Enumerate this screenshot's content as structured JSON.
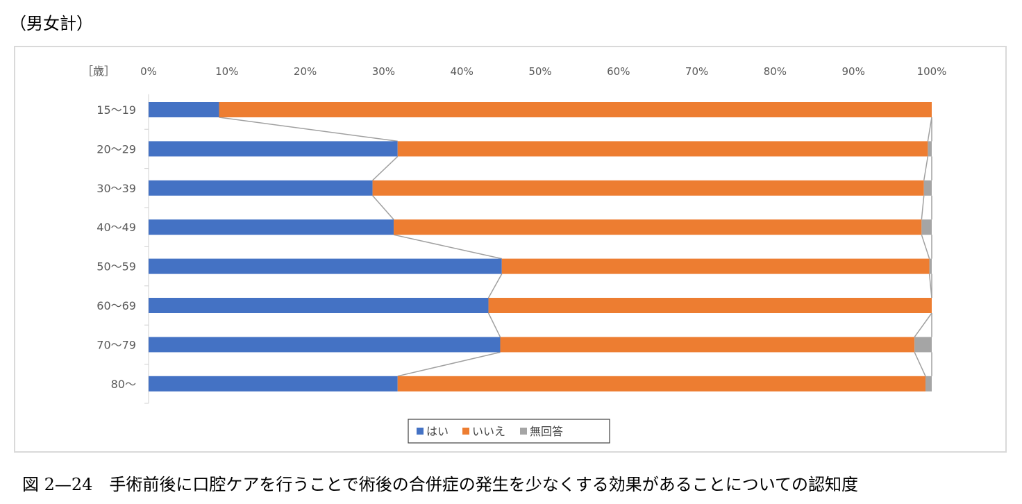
{
  "header_label": "（男女計）",
  "caption": "図 2—24　手術前後に口腔ケアを行うことで術後の合併症の発生を少なくする効果があることについての認知度",
  "chart_data": {
    "type": "bar",
    "orientation": "horizontal",
    "stacked": "percent",
    "category_axis_label": "［歳］",
    "categories": [
      "15～19",
      "20～29",
      "30～39",
      "40～49",
      "50～59",
      "60～69",
      "70～79",
      "80～"
    ],
    "series": [
      {
        "name": "はい",
        "color": "#4472c4",
        "values": [
          9.0,
          31.8,
          28.6,
          31.3,
          45.1,
          43.4,
          44.9,
          31.8
        ]
      },
      {
        "name": "いいえ",
        "color": "#ed7d31",
        "values": [
          91.0,
          67.7,
          70.4,
          67.4,
          54.6,
          56.6,
          52.9,
          67.4
        ]
      },
      {
        "name": "無回答",
        "color": "#a5a5a5",
        "values": [
          0.0,
          0.5,
          1.0,
          1.3,
          0.3,
          0.0,
          2.2,
          0.8
        ]
      }
    ],
    "xticks": [
      "0%",
      "10%",
      "20%",
      "30%",
      "40%",
      "50%",
      "60%",
      "70%",
      "80%",
      "90%",
      "100%"
    ],
    "xlim": [
      0,
      100
    ],
    "series_lines": true,
    "legend_position": "bottom"
  }
}
